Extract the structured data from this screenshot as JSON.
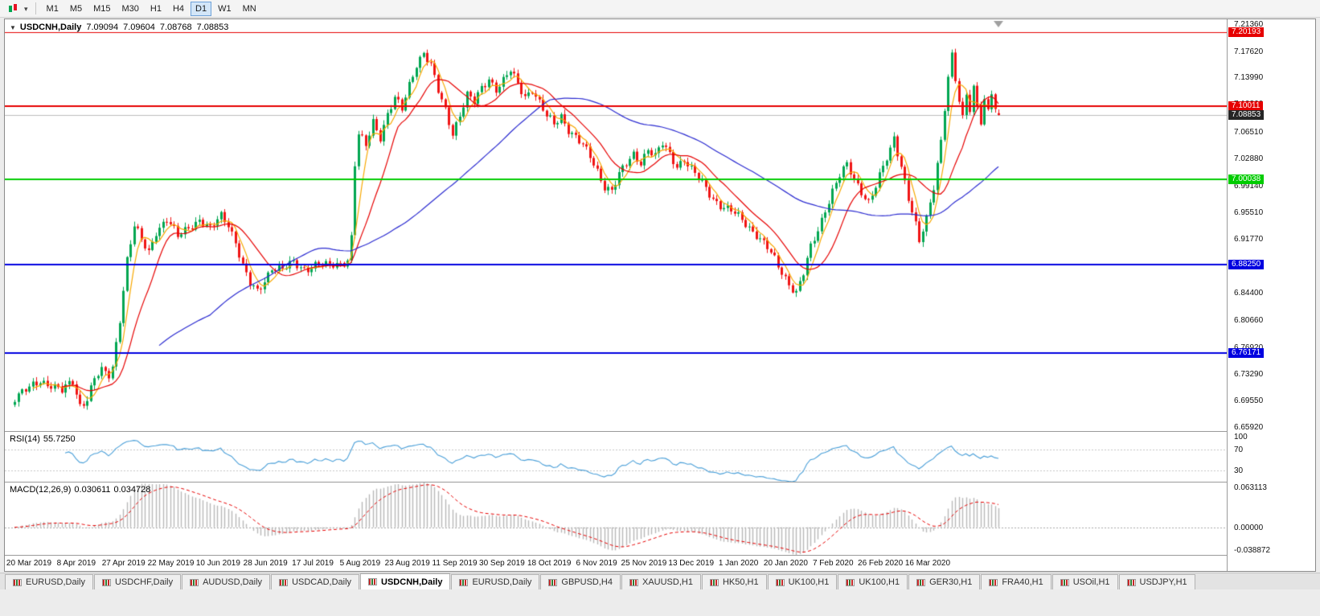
{
  "icons": {
    "collapse_caret": "▼",
    "dropdown_caret": "▾"
  },
  "toolbar": {
    "timeframes": [
      {
        "label": "M1",
        "active": false
      },
      {
        "label": "M5",
        "active": false
      },
      {
        "label": "M15",
        "active": false
      },
      {
        "label": "M30",
        "active": false
      },
      {
        "label": "H1",
        "active": false
      },
      {
        "label": "H4",
        "active": false
      },
      {
        "label": "D1",
        "active": true
      },
      {
        "label": "W1",
        "active": false
      },
      {
        "label": "MN",
        "active": false
      }
    ]
  },
  "chart": {
    "title": {
      "symbol": "USDCNH,Daily",
      "open": "7.09094",
      "high": "7.09604",
      "low": "7.08768",
      "close": "7.08853"
    },
    "price_axis_ticks": [
      "7.21360",
      "7.17620",
      "7.13990",
      "7.10360",
      "7.06510",
      "7.02880",
      "6.99140",
      "6.95510",
      "6.91770",
      "6.88140",
      "6.84400",
      "6.80660",
      "6.76920",
      "6.73290",
      "6.69550",
      "6.65920"
    ],
    "h_lines": [
      {
        "price": 7.20193,
        "label": "7.20193",
        "color": "#e60000",
        "width": 1
      },
      {
        "price": 7.10011,
        "label": "7.10011",
        "color": "#e60000",
        "width": 2
      },
      {
        "price": 7.00038,
        "label": "7.00038",
        "color": "#00cc00",
        "width": 2
      },
      {
        "price": 6.8825,
        "label": "6.88250",
        "color": "#0000e0",
        "width": 2
      },
      {
        "price": 6.76171,
        "label": "6.76171",
        "color": "#0000e0",
        "width": 2
      }
    ],
    "current_price": {
      "price": 7.08853,
      "label": "7.08853",
      "color": "#262626",
      "line_color": "#bcbcbc"
    }
  },
  "rsi": {
    "name": "RSI(14)",
    "value": "55.7250",
    "axis_labels": [
      {
        "text": "100",
        "level": 100
      },
      {
        "text": "70",
        "level": 70
      },
      {
        "text": "30",
        "level": 30
      }
    ],
    "levels": [
      70,
      30
    ],
    "range": [
      8,
      105
    ],
    "line_color": "#4a9fd8",
    "level_color": "#c4c4c4"
  },
  "macd": {
    "name": "MACD(12,26,9)",
    "value": "0.030611",
    "signal_value": "0.034728",
    "axis_labels": [
      {
        "text": "0.063113",
        "level": 0.063113
      },
      {
        "text": "0.00000",
        "level": 0
      },
      {
        "text": "-0.038872",
        "level": -0.038872
      }
    ],
    "range": [
      -0.0389,
      0.0631
    ],
    "hist_color": "#b8b8b8",
    "signal_color": "#e60000",
    "zero_color": "#a8a8a8"
  },
  "time_axis": {
    "labels": [
      "20 Mar 2019",
      "8 Apr 2019",
      "27 Apr 2019",
      "22 May 2019",
      "10 Jun 2019",
      "28 Jun 2019",
      "17 Jul 2019",
      "5 Aug 2019",
      "23 Aug 2019",
      "11 Sep 2019",
      "30 Sep 2019",
      "18 Oct 2019",
      "6 Nov 2019",
      "25 Nov 2019",
      "13 Dec 2019",
      "1 Jan 2020",
      "20 Jan 2020",
      "7 Feb 2020",
      "26 Feb 2020",
      "16 Mar 2020"
    ]
  },
  "tabs": [
    {
      "label": "EURUSD,Daily",
      "active": false
    },
    {
      "label": "USDCHF,Daily",
      "active": false
    },
    {
      "label": "AUDUSD,Daily",
      "active": false
    },
    {
      "label": "USDCAD,Daily",
      "active": false
    },
    {
      "label": "USDCNH,Daily",
      "active": true
    },
    {
      "label": "EURUSD,Daily",
      "active": false
    },
    {
      "label": "GBPUSD,H4",
      "active": false
    },
    {
      "label": "XAUUSD,H1",
      "active": false
    },
    {
      "label": "HK50,H1",
      "active": false
    },
    {
      "label": "UK100,H1",
      "active": false
    },
    {
      "label": "UK100,H1",
      "active": false
    },
    {
      "label": "GER30,H1",
      "active": false
    },
    {
      "label": "FRA40,H1",
      "active": false
    },
    {
      "label": "USOil,H1",
      "active": false
    },
    {
      "label": "USDJPY,H1",
      "active": false
    }
  ],
  "chart_data": {
    "type": "candlestick",
    "symbol": "USDCNH",
    "timeframe": "Daily",
    "ohlc_current": {
      "open": 7.09094,
      "high": 7.09604,
      "low": 7.08768,
      "close": 7.08853
    },
    "price_range": [
      6.654,
      7.22
    ],
    "candle_colors": {
      "up": "#00a651",
      "down": "#f01414"
    },
    "moving_averages": [
      {
        "period": 5,
        "color": "#f7a800"
      },
      {
        "period": 13,
        "color": "#e60000"
      },
      {
        "period": 55,
        "color": "#2b2bd0"
      }
    ],
    "anchors": {
      "index": [
        -4,
        0,
        3,
        6,
        9,
        12,
        14,
        16,
        18,
        20,
        22,
        23,
        25,
        27,
        29,
        31,
        33,
        35,
        38,
        41,
        44,
        47,
        50,
        53,
        55,
        57,
        59,
        61,
        63,
        65,
        67,
        70,
        73,
        76,
        79,
        82,
        85,
        88,
        89,
        90,
        91,
        93,
        95,
        97,
        99,
        101,
        103,
        105,
        107,
        109,
        111,
        113,
        115,
        117,
        119,
        121,
        123,
        125,
        127,
        129,
        131,
        133,
        135,
        137,
        139,
        141,
        143,
        145,
        147,
        149,
        151,
        153,
        155,
        157,
        159,
        161,
        163,
        165,
        167,
        169,
        171,
        173,
        175,
        177,
        179,
        181,
        183,
        185,
        187,
        189,
        191,
        193,
        195,
        198,
        201,
        204,
        207,
        210,
        212,
        214,
        216,
        218,
        220,
        222,
        224,
        226,
        228,
        230,
        232,
        234,
        236,
        238,
        239,
        241,
        243,
        245,
        246,
        248,
        250,
        252,
        253,
        254,
        255,
        256,
        257,
        258,
        259,
        260,
        261,
        262,
        263,
        264,
        265,
        266,
        267,
        268
      ],
      "close": [
        6.7,
        6.712,
        6.724,
        6.718,
        6.708,
        6.722,
        6.69,
        6.7,
        6.726,
        6.735,
        6.73,
        6.742,
        6.81,
        6.89,
        6.935,
        6.915,
        6.9,
        6.93,
        6.945,
        6.92,
        6.935,
        6.945,
        6.93,
        6.95,
        6.94,
        6.915,
        6.88,
        6.855,
        6.845,
        6.862,
        6.88,
        6.875,
        6.885,
        6.878,
        6.882,
        6.88,
        6.884,
        6.89,
        6.92,
        7.02,
        7.06,
        7.045,
        7.08,
        7.06,
        7.09,
        7.11,
        7.095,
        7.13,
        7.16,
        7.175,
        7.155,
        7.12,
        7.095,
        7.065,
        7.09,
        7.115,
        7.105,
        7.125,
        7.14,
        7.125,
        7.135,
        7.148,
        7.13,
        7.115,
        7.125,
        7.105,
        7.085,
        7.075,
        7.088,
        7.07,
        7.058,
        7.045,
        7.03,
        7.012,
        6.992,
        6.985,
        7.005,
        7.02,
        7.035,
        7.025,
        7.042,
        7.03,
        7.048,
        7.035,
        7.02,
        7.028,
        7.012,
        7.0,
        6.988,
        6.975,
        6.965,
        6.958,
        6.952,
        6.94,
        6.925,
        6.905,
        6.88,
        6.858,
        6.845,
        6.87,
        6.905,
        6.93,
        6.96,
        6.985,
        7.005,
        7.018,
        7.0,
        6.985,
        6.97,
        6.99,
        7.015,
        7.04,
        7.058,
        7.02,
        6.975,
        6.935,
        6.912,
        6.945,
        6.992,
        7.055,
        7.1,
        7.14,
        7.168,
        7.135,
        7.105,
        7.082,
        7.118,
        7.098,
        7.128,
        7.103,
        7.082,
        7.108,
        7.092,
        7.118,
        7.093,
        7.0885
      ]
    }
  }
}
